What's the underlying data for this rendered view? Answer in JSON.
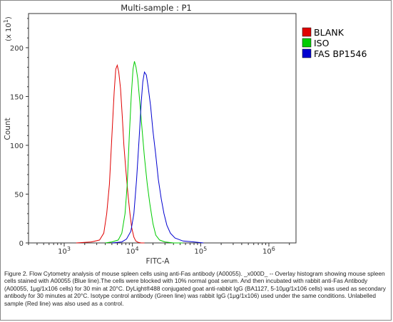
{
  "chart_data": {
    "type": "line",
    "title": "Multi-sample : P1",
    "xlabel": "FITC-A",
    "ylabel": "Count",
    "y_multiplier": "(x 10",
    "y_multiplier_exp": "1",
    "y_multiplier_close": ")",
    "x_scale": "log",
    "xlim": [
      300,
      2500000
    ],
    "ylim": [
      0,
      235
    ],
    "x_ticks": [
      {
        "value": 1000,
        "base": "10",
        "exp": "3"
      },
      {
        "value": 10000,
        "base": "10",
        "exp": "4"
      },
      {
        "value": 100000,
        "base": "10",
        "exp": "5"
      },
      {
        "value": 1000000,
        "base": "10",
        "exp": "6"
      }
    ],
    "y_ticks": [
      0,
      50,
      100,
      150,
      200
    ],
    "grid": false,
    "legend_position": "right",
    "series": [
      {
        "name": "BLANK",
        "color": "#e00000",
        "x": [
          1500,
          2500,
          3300,
          3800,
          4200,
          4600,
          5000,
          5400,
          5700,
          6000,
          6300,
          6700,
          7100,
          7500,
          8000,
          8600,
          9200,
          9800,
          10500,
          11200,
          12200,
          13500,
          15000
        ],
        "y": [
          0,
          1,
          3,
          10,
          30,
          60,
          110,
          155,
          178,
          182,
          175,
          158,
          130,
          100,
          75,
          50,
          30,
          15,
          6,
          2,
          0.5,
          0,
          0
        ]
      },
      {
        "name": "ISO",
        "color": "#00cc00",
        "x": [
          4000,
          5000,
          6200,
          7000,
          7800,
          8400,
          9000,
          9600,
          10200,
          10700,
          11300,
          12000,
          12800,
          13800,
          15000,
          16500,
          18000,
          20000,
          22000,
          25000,
          30000,
          40000,
          55000
        ],
        "y": [
          0,
          1,
          3,
          10,
          30,
          60,
          110,
          150,
          178,
          186,
          180,
          168,
          145,
          118,
          88,
          60,
          40,
          20,
          8,
          3,
          1,
          0,
          0
        ]
      },
      {
        "name": "FAS BP1546",
        "color": "#0000d0",
        "x": [
          5000,
          7000,
          8200,
          9500,
          10500,
          11500,
          12500,
          13500,
          14200,
          15000,
          16000,
          17000,
          18500,
          20000,
          22000,
          24000,
          26500,
          29000,
          32000,
          36000,
          42000,
          55000,
          80000,
          110000
        ],
        "y": [
          0,
          1,
          4,
          12,
          30,
          65,
          105,
          145,
          165,
          175,
          172,
          160,
          140,
          115,
          90,
          65,
          45,
          30,
          18,
          10,
          5,
          2,
          1,
          0
        ]
      }
    ]
  },
  "caption": "Figure 2. Flow Cytometry analysis of mouse spleen cells using anti-Fas antibody (A00055). _x000D_ -- Overlay histogram showing mouse spleen cells stained with A00055 (Blue line).The cells were blocked with 10% normal goat serum. And then incubated with rabbit anti-Fas Antibody (A00055, 1μg/1x106 cells) for 30 min at 20°C. DyLight®488 conjugated goat anti-rabbit IgG (BA1127, 5-10μg/1x106 cells) was used as secondary antibody for 30 minutes at 20°C. Isotype control antibody (Green line) was rabbit IgG (1μg/1x106) used under the same conditions. Unlabelled sample (Red line) was also used as a control."
}
